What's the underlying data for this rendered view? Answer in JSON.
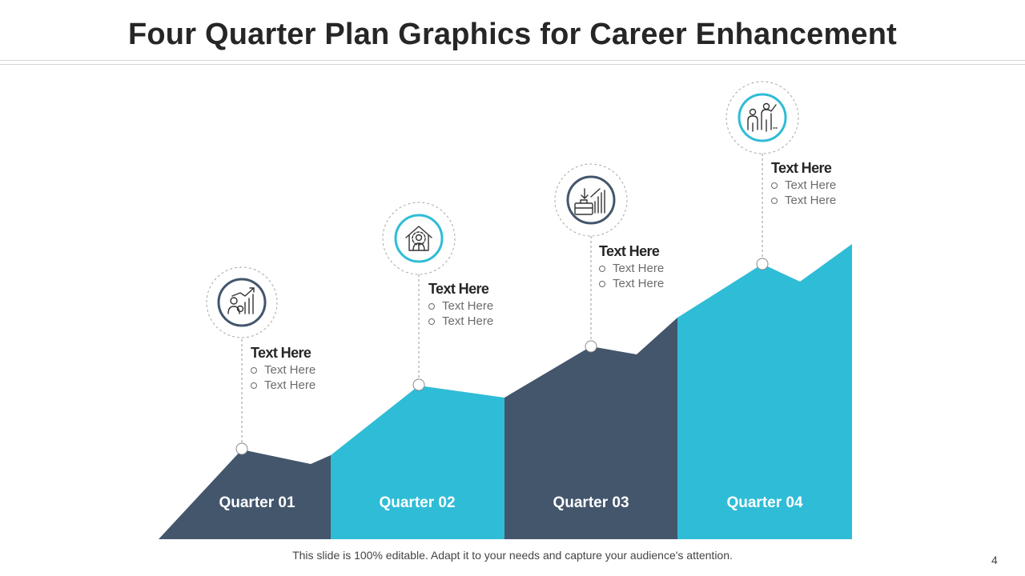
{
  "title": "Four Quarter Plan Graphics for Career Enhancement",
  "colors": {
    "dark": "#43566c",
    "teal": "#2fbcd6",
    "title": "#262626"
  },
  "quarters": [
    {
      "label": "Quarter 01",
      "heading": "Text Here",
      "bullets": [
        "Text Here",
        "Text Here"
      ],
      "icon": "career-growth-chart-icon",
      "color": "#43566c"
    },
    {
      "label": "Quarter 02",
      "heading": "Text Here",
      "bullets": [
        "Text Here",
        "Text Here"
      ],
      "icon": "employee-gear-house-icon",
      "color": "#2fbcd6"
    },
    {
      "label": "Quarter 03",
      "heading": "Text Here",
      "bullets": [
        "Text Here",
        "Text Here"
      ],
      "icon": "briefcase-growth-icon",
      "color": "#43566c"
    },
    {
      "label": "Quarter 04",
      "heading": "Text Here",
      "bullets": [
        "Text Here",
        "Text Here"
      ],
      "icon": "mentor-presentation-icon",
      "color": "#2fbcd6"
    }
  ],
  "footer": "This slide is 100% editable. Adapt it to your needs and capture your audience's attention.",
  "page_number": "4"
}
